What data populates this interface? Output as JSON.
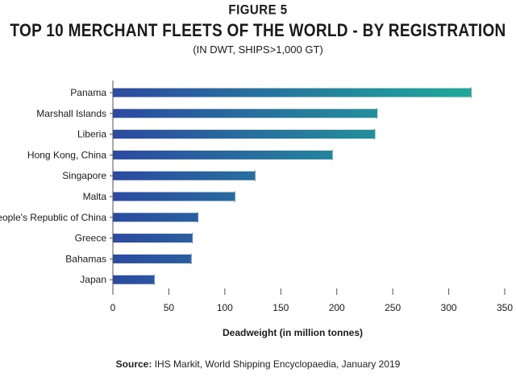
{
  "figure_label": "FIGURE 5",
  "source": {
    "label": "Source:",
    "text": "IHS Markit, World Shipping Encyclopaedia, January 2019"
  },
  "chart_data": {
    "type": "bar",
    "orientation": "horizontal",
    "title": "TOP 10 MERCHANT FLEETS OF THE WORLD - BY REGISTRATION",
    "subtitle": "(IN DWT, SHIPS>1,000 GT)",
    "xlabel": "Deadweight (in million tonnes)",
    "ylabel": "",
    "categories": [
      "Panama",
      "Marshall Islands",
      "Liberia",
      "Hong Kong, China",
      "Singapore",
      "Malta",
      "People's Republic of China",
      "Greece",
      "Bahamas",
      "Japan"
    ],
    "values": [
      320,
      236,
      234,
      196,
      127,
      109,
      76,
      71,
      70,
      37
    ],
    "xlim": [
      0,
      350
    ],
    "xticks": [
      0,
      50,
      100,
      150,
      200,
      250,
      300,
      350
    ],
    "grid": false,
    "colors": {
      "bar_start": "#2c4aa0",
      "bar_end": "#20a89a",
      "axis": "#555555"
    }
  }
}
